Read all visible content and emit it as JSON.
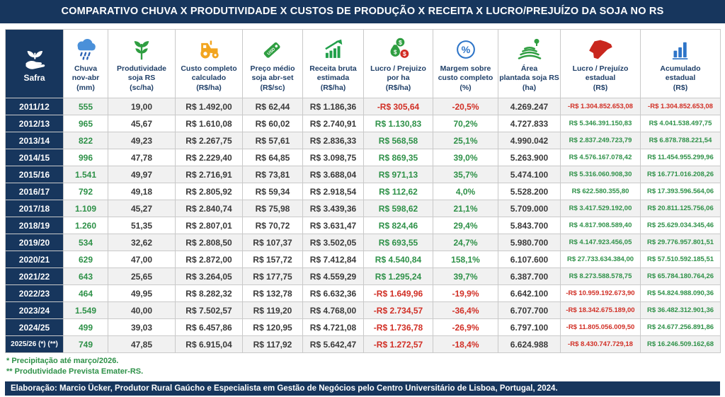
{
  "title": "COMPARATIVO CHUVA X PRODUTIVIDADE X CUSTOS DE PRODUÇÃO X RECEITA X LUCRO/PREJUÍZO DA SOJA NO RS",
  "colors": {
    "navy": "#17365D",
    "positive_green": "#2E9148",
    "negative_red": "#D12F25",
    "neutral_text": "#3A3A3A",
    "header_label": "#1F3F68",
    "border": "#C9C9C9",
    "row_alt": "#F1F1F1",
    "icon_blue": "#4A90D9",
    "icon_green": "#2F9E41",
    "icon_orange": "#F2A51F",
    "icon_red": "#C9271E",
    "icon_chart_blue": "#2E75C8"
  },
  "icons": [
    "safra-hand-plant-icon",
    "rain-cloud-icon",
    "seedling-icon",
    "tractor-icon",
    "price-tag-icon",
    "revenue-chart-icon",
    "money-bags-icon",
    "percent-circle-icon",
    "planted-field-icon",
    "rs-state-map-icon",
    "bar-chart-icon"
  ],
  "chart_data": {
    "type": "table",
    "title": "COMPARATIVO CHUVA X PRODUTIVIDADE X CUSTOS DE PRODUÇÃO X RECEITA X LUCRO/PREJUÍZO DA SOJA NO RS",
    "columns": [
      "Safra",
      "Chuva\nnov-abr\n(mm)",
      "Produtividade\nsoja RS\n(sc/ha)",
      "Custo completo\ncalculado\n(R$/ha)",
      "Preço médio\nsoja abr-set\n(R$/sc)",
      "Receita bruta\nestimada\n(R$/ha)",
      "Lucro / Prejuizo\npor ha\n(R$/ha)",
      "Margem sobre\ncusto completo\n(%)",
      "Área\nplantada soja RS\n(ha)",
      "Lucro / Prejuízo\nestadual\n(R$)",
      "Acumulado\nestadual\n(R$)"
    ],
    "column_styles": [
      "year",
      "green",
      "dark",
      "dark",
      "dark",
      "dark",
      "signed",
      "signed",
      "dark",
      "signed",
      "signed"
    ],
    "rows": [
      [
        "2011/12",
        "555",
        "19,00",
        "R$ 1.492,00",
        "R$ 62,44",
        "R$ 1.186,36",
        "-R$ 305,64",
        "-20,5%",
        "4.269.247",
        "-R$ 1.304.852.653,08",
        "-R$ 1.304.852.653,08"
      ],
      [
        "2012/13",
        "965",
        "45,67",
        "R$ 1.610,08",
        "R$ 60,02",
        "R$ 2.740,91",
        "R$ 1.130,83",
        "70,2%",
        "4.727.833",
        "R$ 5.346.391.150,83",
        "R$ 4.041.538.497,75"
      ],
      [
        "2013/14",
        "822",
        "49,23",
        "R$ 2.267,75",
        "R$ 57,61",
        "R$ 2.836,33",
        "R$ 568,58",
        "25,1%",
        "4.990.042",
        "R$ 2.837.249.723,79",
        "R$ 6.878.788.221,54"
      ],
      [
        "2014/15",
        "996",
        "47,78",
        "R$ 2.229,40",
        "R$ 64,85",
        "R$ 3.098,75",
        "R$ 869,35",
        "39,0%",
        "5.263.900",
        "R$ 4.576.167.078,42",
        "R$ 11.454.955.299,96"
      ],
      [
        "2015/16",
        "1.541",
        "49,97",
        "R$ 2.716,91",
        "R$ 73,81",
        "R$ 3.688,04",
        "R$ 971,13",
        "35,7%",
        "5.474.100",
        "R$ 5.316.060.908,30",
        "R$ 16.771.016.208,26"
      ],
      [
        "2016/17",
        "792",
        "49,18",
        "R$ 2.805,92",
        "R$ 59,34",
        "R$ 2.918,54",
        "R$ 112,62",
        "4,0%",
        "5.528.200",
        "R$ 622.580.355,80",
        "R$ 17.393.596.564,06"
      ],
      [
        "2017/18",
        "1.109",
        "45,27",
        "R$ 2.840,74",
        "R$ 75,98",
        "R$ 3.439,36",
        "R$ 598,62",
        "21,1%",
        "5.709.000",
        "R$ 3.417.529.192,00",
        "R$ 20.811.125.756,06"
      ],
      [
        "2018/19",
        "1.260",
        "51,35",
        "R$ 2.807,01",
        "R$ 70,72",
        "R$ 3.631,47",
        "R$ 824,46",
        "29,4%",
        "5.843.700",
        "R$ 4.817.908.589,40",
        "R$ 25.629.034.345,46"
      ],
      [
        "2019/20",
        "534",
        "32,62",
        "R$ 2.808,50",
        "R$ 107,37",
        "R$ 3.502,05",
        "R$ 693,55",
        "24,7%",
        "5.980.700",
        "R$ 4.147.923.456,05",
        "R$ 29.776.957.801,51"
      ],
      [
        "2020/21",
        "629",
        "47,00",
        "R$ 2.872,00",
        "R$ 157,72",
        "R$ 7.412,84",
        "R$ 4.540,84",
        "158,1%",
        "6.107.600",
        "R$ 27.733.634.384,00",
        "R$ 57.510.592.185,51"
      ],
      [
        "2021/22",
        "643",
        "25,65",
        "R$ 3.264,05",
        "R$ 177,75",
        "R$ 4.559,29",
        "R$ 1.295,24",
        "39,7%",
        "6.387.700",
        "R$ 8.273.588.578,75",
        "R$ 65.784.180.764,26"
      ],
      [
        "2022/23",
        "464",
        "49,95",
        "R$ 8.282,32",
        "R$ 132,78",
        "R$ 6.632,36",
        "-R$ 1.649,96",
        "-19,9%",
        "6.642.100",
        "-R$ 10.959.192.673,90",
        "R$ 54.824.988.090,36"
      ],
      [
        "2023/24",
        "1.549",
        "40,00",
        "R$ 7.502,57",
        "R$ 119,20",
        "R$ 4.768,00",
        "-R$ 2.734,57",
        "-36,4%",
        "6.707.700",
        "-R$ 18.342.675.189,00",
        "R$ 36.482.312.901,36"
      ],
      [
        "2024/25",
        "499",
        "39,03",
        "R$ 6.457,86",
        "R$ 120,95",
        "R$ 4.721,08",
        "-R$ 1.736,78",
        "-26,9%",
        "6.797.100",
        "-R$ 11.805.056.009,50",
        "R$ 24.677.256.891,86"
      ],
      [
        "2025/26 (*) (**)",
        "749",
        "47,85",
        "R$ 6.915,04",
        "R$ 117,92",
        "R$ 5.642,47",
        "-R$ 1.272,57",
        "-18,4%",
        "6.624.988",
        "-R$ 8.430.747.729,18",
        "R$ 16.246.509.162,68"
      ]
    ]
  },
  "footnotes": [
    "* Precipitação até março/2026.",
    "** Produtividade Prevista Emater-RS."
  ],
  "credit": "Elaboração: Marcio Ücker, Produtor Rural Gaúcho e Especialista em Gestão de Negócios pelo Centro Universitário de Lisboa, Portugal, 2024."
}
